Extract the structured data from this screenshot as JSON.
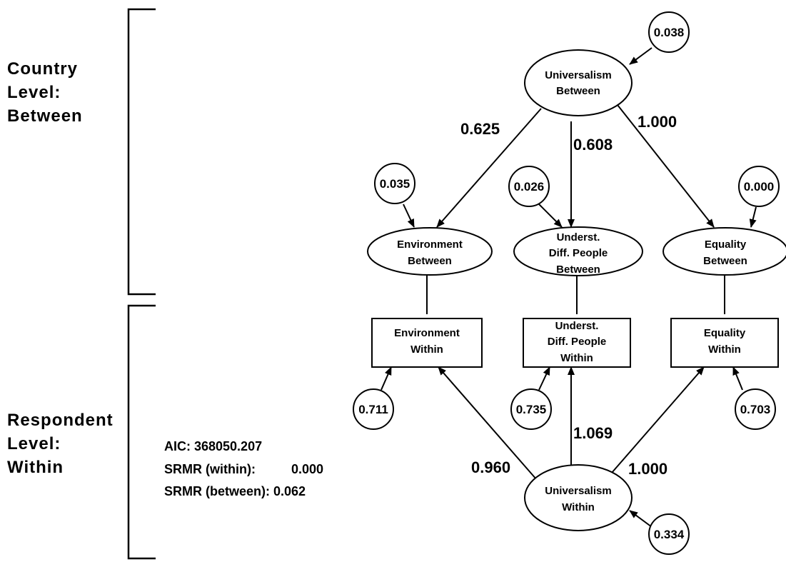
{
  "levels": {
    "between": [
      "Country",
      "Level:",
      "Between"
    ],
    "within": [
      "Respondent",
      "Level:",
      "Within"
    ]
  },
  "fit": {
    "aic": "AIC: 368050.207",
    "srmr_within_label": "SRMR (within):",
    "srmr_within_value": "0.000",
    "srmr_between": "SRMR (between): 0.062"
  },
  "nodes": {
    "univ_between": [
      "Universalism",
      "Between"
    ],
    "env_between": [
      "Environment",
      "Between"
    ],
    "und_between": [
      "Underst.",
      "Diff. People",
      "Between"
    ],
    "eq_between": [
      "Equality",
      "Between"
    ],
    "env_within": [
      "Environment",
      "Within"
    ],
    "und_within": [
      "Underst.",
      "Diff. People",
      "Within"
    ],
    "eq_within": [
      "Equality",
      "Within"
    ],
    "univ_within": [
      "Universalism",
      "Within"
    ]
  },
  "residuals": {
    "univ_between": "0.038",
    "env_between": "0.035",
    "und_between": "0.026",
    "eq_between": "0.000",
    "env_within": "0.711",
    "und_within": "0.735",
    "eq_within": "0.703",
    "univ_within": "0.334"
  },
  "loadings": {
    "between_env": "0.625",
    "between_und": "0.608",
    "between_eq": "1.000",
    "within_env": "0.960",
    "within_und": "1.069",
    "within_eq": "1.000"
  }
}
